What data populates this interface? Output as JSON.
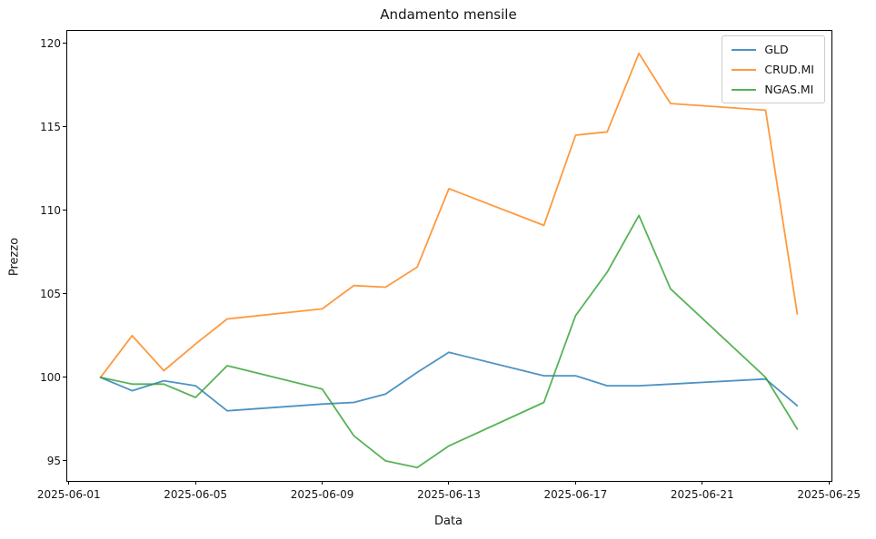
{
  "title": "Andamento mensile",
  "chart_data": {
    "type": "line",
    "title": "Andamento mensile",
    "xlabel": "Data",
    "ylabel": "Prezzo",
    "x": [
      "2025-06-02",
      "2025-06-03",
      "2025-06-04",
      "2025-06-05",
      "2025-06-06",
      "2025-06-09",
      "2025-06-10",
      "2025-06-11",
      "2025-06-12",
      "2025-06-13",
      "2025-06-16",
      "2025-06-17",
      "2025-06-18",
      "2025-06-19",
      "2025-06-20",
      "2025-06-23",
      "2025-06-24"
    ],
    "series": [
      {
        "name": "GLD",
        "color": "#1f77b4",
        "values": [
          100.0,
          99.2,
          99.8,
          99.5,
          98.0,
          98.4,
          98.5,
          99.0,
          100.3,
          101.5,
          100.1,
          100.1,
          99.5,
          99.5,
          99.6,
          99.9,
          98.3
        ]
      },
      {
        "name": "CRUD.MI",
        "color": "#ff7f0e",
        "values": [
          100.0,
          102.5,
          100.4,
          102.0,
          103.5,
          104.1,
          105.5,
          105.4,
          106.6,
          111.3,
          109.1,
          114.5,
          114.7,
          119.4,
          116.4,
          116.0,
          103.8
        ]
      },
      {
        "name": "NGAS.MI",
        "color": "#2ca02c",
        "values": [
          100.0,
          99.6,
          99.6,
          98.8,
          100.7,
          99.3,
          96.5,
          95.0,
          94.6,
          95.9,
          98.5,
          103.7,
          106.3,
          109.7,
          105.3,
          100.0,
          96.9
        ]
      }
    ],
    "x_ticks": [
      "2025-06-01",
      "2025-06-05",
      "2025-06-09",
      "2025-06-13",
      "2025-06-17",
      "2025-06-21",
      "2025-06-25"
    ],
    "y_ticks": [
      95,
      100,
      105,
      110,
      115,
      120
    ],
    "xlim_days": [
      0.95,
      25.08
    ],
    "ylim": [
      93.8,
      120.75
    ],
    "legend_position": "top-right",
    "grid": false,
    "line_opacity": 0.8,
    "line_width": 1.8
  }
}
